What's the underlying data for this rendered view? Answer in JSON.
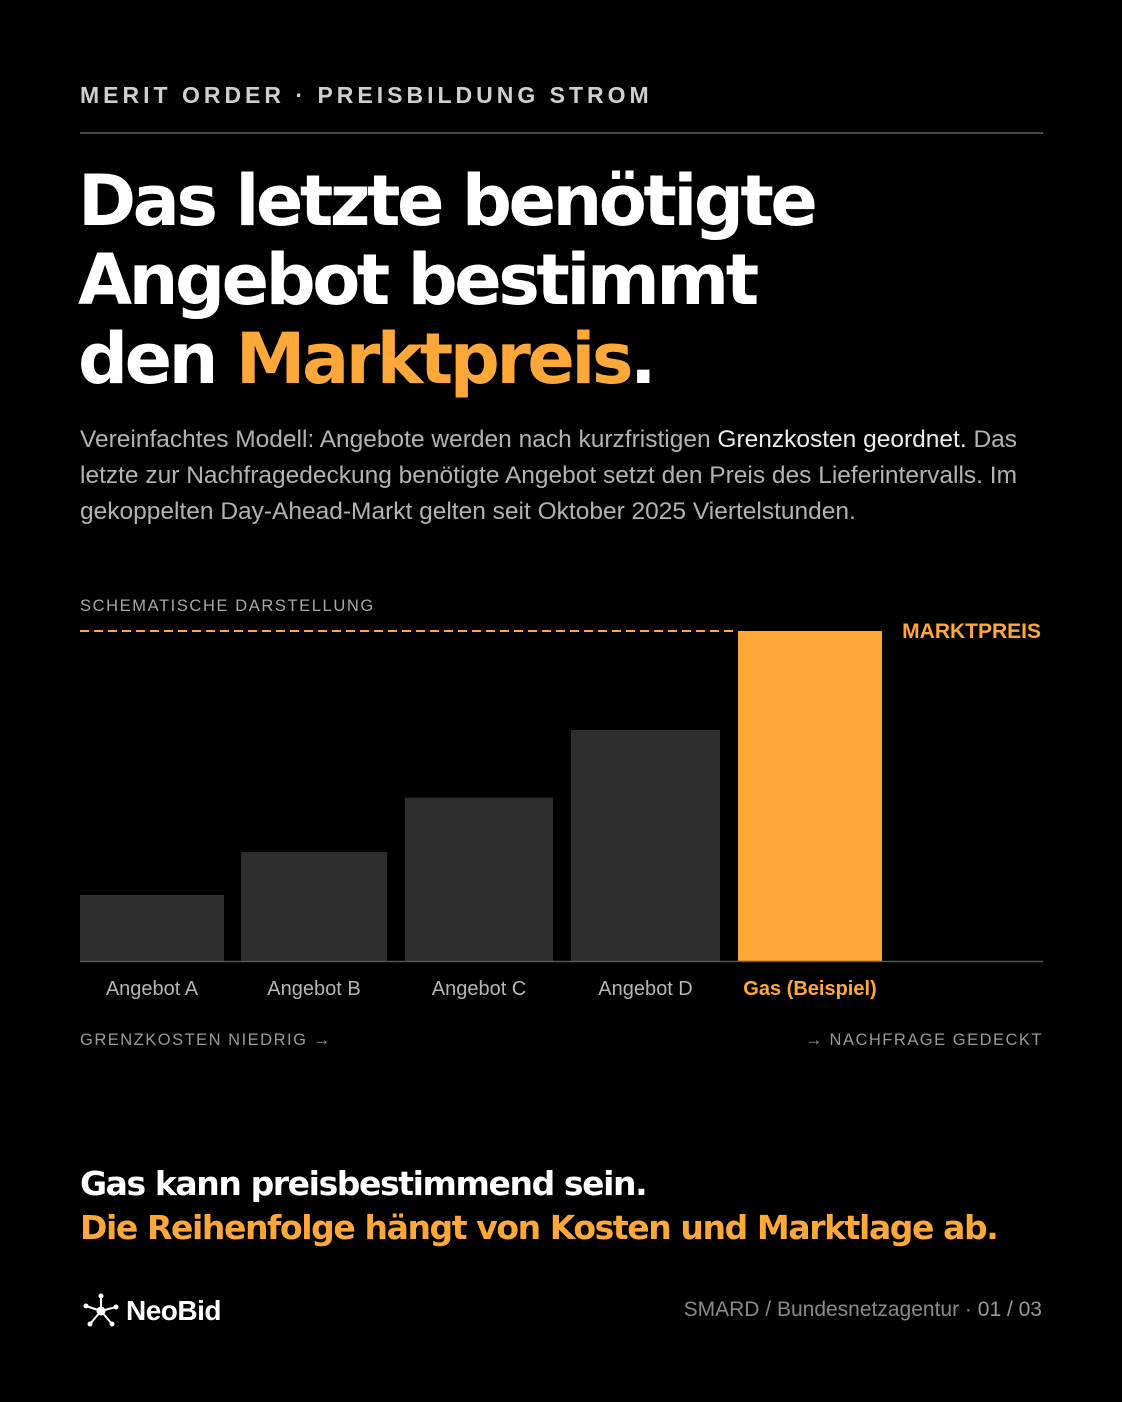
{
  "header": {
    "kicker": "MERIT ORDER · PREISBILDUNG STROM",
    "headline_line1": "Das letzte benötigte",
    "headline_line2": "Angebot bestimmt",
    "headline_line3_prefix": "den ",
    "headline_line3_highlight": "Marktpreis",
    "headline_line3_suffix": "."
  },
  "lead": {
    "part1": "Vereinfachtes Modell: Angebote werden nach kurzfristigen ",
    "emphasis": "Grenzkosten geordnet.",
    "part2": " Das letzte zur Nachfragedeckung benötigte Angebot setzt den Preis des Lieferintervalls. Im gekoppelten Day-Ahead-Markt gelten seit Oktober 2025 Viertelstunden."
  },
  "chart_caption": "SCHEMATISCHE DARSTELLUNG",
  "chart_data": {
    "type": "bar",
    "categories": [
      "Angebot A",
      "Angebot B",
      "Angebot C",
      "Angebot D",
      "Gas (Beispiel)"
    ],
    "values": [
      20,
      33,
      49.5,
      70,
      100
    ],
    "highlight_index": 4,
    "ylim": [
      0,
      100
    ],
    "price_line_label": "MARKTPREIS",
    "price_line_value": 100,
    "axis_note_left": "GRENZKOSTEN NIEDRIG →",
    "axis_note_right": "→ NACHFRAGE GEDECKT",
    "grid": false,
    "colors": {
      "bar": "#2e2e2e",
      "highlight": "#ffa83a",
      "label": "#b5b5b5",
      "axis": "#555555"
    }
  },
  "footer": {
    "line1": "Gas kann preisbestimmend sein.",
    "line2": "Die Reihenfolge hängt von Kosten und Marktlage ab.",
    "brand": "NeoBid",
    "source": "SMARD / Bundesnetzagentur · ",
    "page": "01 / 03"
  },
  "colors": {
    "background": "#000000",
    "accent": "#ffa83a",
    "text": "#ffffff"
  }
}
